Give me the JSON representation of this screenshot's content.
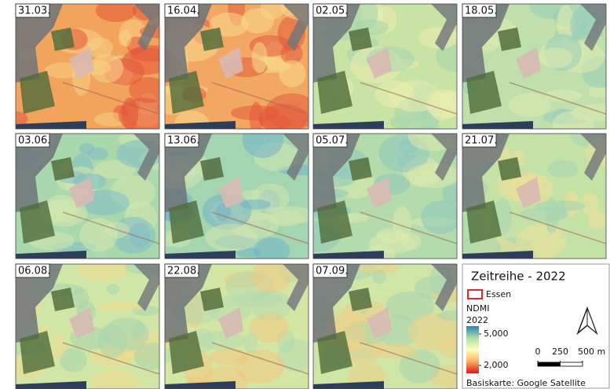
{
  "panels": [
    {
      "date": "31.03."
    },
    {
      "date": "16.04."
    },
    {
      "date": "02.05."
    },
    {
      "date": "18.05."
    },
    {
      "date": "03.06."
    },
    {
      "date": "13.06."
    },
    {
      "date": "05.07."
    },
    {
      "date": "21.07."
    },
    {
      "date": "06.08."
    },
    {
      "date": "22.08."
    },
    {
      "date": "07.09."
    }
  ],
  "legend": {
    "title": "Zeitreihe - 2022",
    "boundary_label": "Essen",
    "boundary_color": "#e0262b",
    "index_label": "NDMI",
    "year_label": "2022",
    "colorbar": {
      "clim": [
        1250,
        5750
      ],
      "ticks": [
        {
          "value": 5000,
          "label": "5,000"
        },
        {
          "value": 2000,
          "label": "2,000"
        }
      ],
      "colors": [
        "#d7191c",
        "#fdae61",
        "#ffffbf",
        "#abdda4",
        "#2b83ba"
      ]
    },
    "scalebar": {
      "ticks": [
        0,
        250,
        {
          "value": 500,
          "label": "500 m"
        }
      ]
    },
    "basemap": "Basiskarte: Google Satellite"
  }
}
